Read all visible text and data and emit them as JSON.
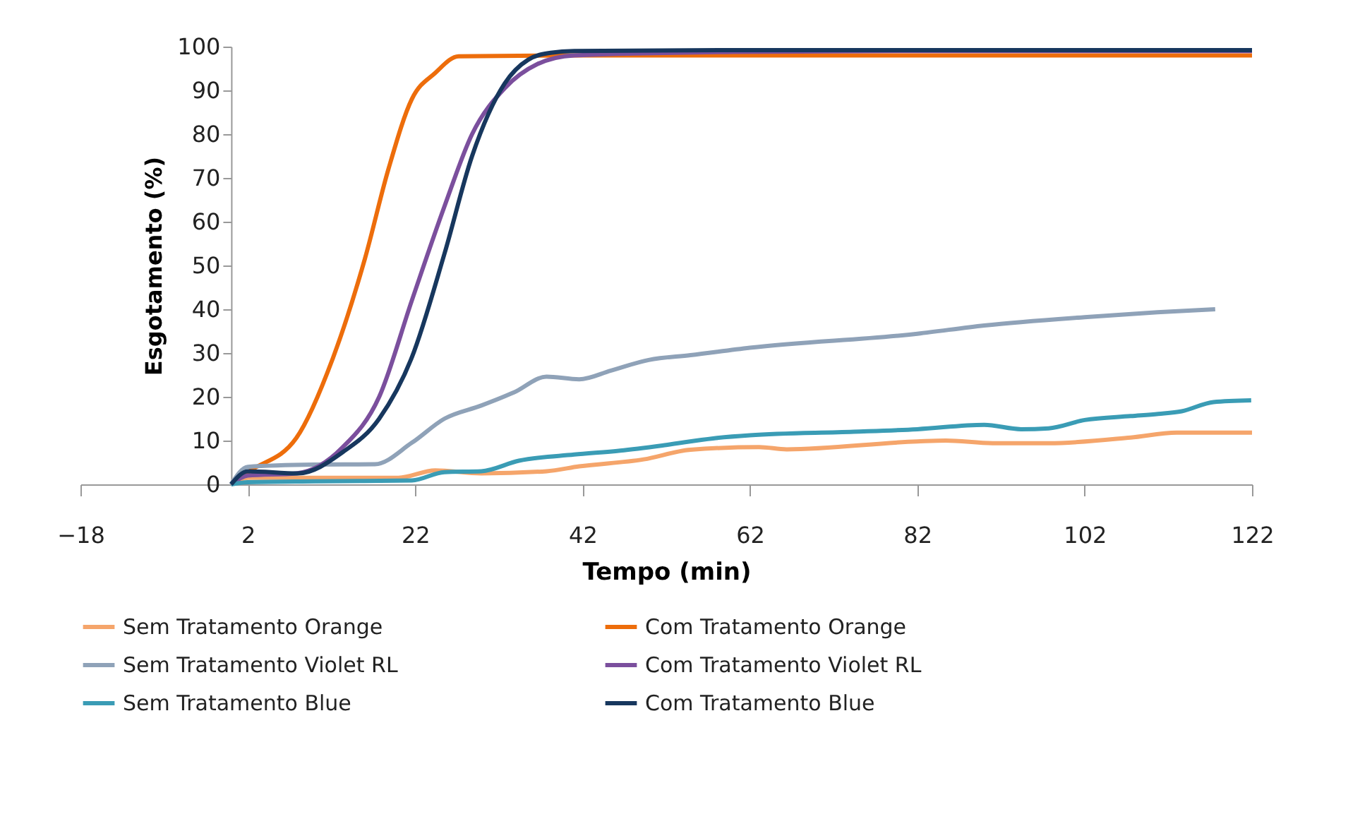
{
  "chart_data": {
    "type": "line",
    "xlabel": "Tempo (min)",
    "ylabel": "Esgotamento (%)",
    "xlim": [
      -18,
      122
    ],
    "xticks": [
      -18,
      2,
      22,
      42,
      62,
      82,
      102,
      122
    ],
    "ylim": [
      0,
      100
    ],
    "yticks": [
      0,
      10,
      20,
      30,
      40,
      50,
      60,
      70,
      80,
      90,
      100
    ],
    "grid": false,
    "legend": "bottom",
    "marker": "none",
    "line_style": "solid",
    "series": [
      {
        "name": "Sem Tratamento Orange",
        "color": "#f5a56b",
        "x": [
          0,
          2,
          10,
          20,
          24.4,
          29.9,
          37.7,
          41.6,
          49.3,
          54.9,
          63.1,
          66.4,
          82,
          85.4,
          91,
          97.7,
          107.5,
          113,
          122
        ],
        "values": [
          0,
          1.5,
          1.5,
          1.5,
          3.2,
          2.5,
          3,
          4.1,
          5.7,
          7.9,
          8.5,
          8,
          9.8,
          10,
          9.4,
          9.4,
          10.7,
          11.8,
          11.8
        ]
      },
      {
        "name": "Com Tratamento Orange",
        "color": "#ed6d0b",
        "x": [
          0,
          2.2,
          7.8,
          12.2,
          16,
          18.8,
          21.6,
          24.4,
          27.2,
          40,
          60,
          80,
          100,
          122
        ],
        "values": [
          0,
          3,
          10.6,
          29,
          51.6,
          72,
          88,
          94,
          97.8,
          98,
          98,
          98,
          98,
          98
        ]
      },
      {
        "name": "Sem Tratamento Violet RL",
        "color": "#8fa2b8",
        "x": [
          0,
          2,
          10,
          17.2,
          21.6,
          25.5,
          29.9,
          33.8,
          37.7,
          41.6,
          45.4,
          49.9,
          54.9,
          62,
          82,
          90,
          102,
          110.7,
          117.6
        ],
        "values": [
          0,
          4,
          4.5,
          4.6,
          9.5,
          15,
          18,
          21,
          24.6,
          24,
          26,
          28.4,
          29.5,
          31.2,
          34.4,
          36.3,
          38.2,
          39.3,
          40
        ]
      },
      {
        "name": "Com Tratamento Violet RL",
        "color": "#7b4f9d",
        "x": [
          0,
          2,
          7.8,
          13.3,
          17.7,
          21.6,
          25.5,
          28.8,
          32.7,
          36.6,
          41,
          60,
          80,
          100,
          122
        ],
        "values": [
          0,
          2,
          2.5,
          8.4,
          20,
          42,
          63.5,
          80,
          90.5,
          96,
          98,
          98.8,
          99,
          99,
          99
        ]
      },
      {
        "name": "Sem Tratamento Blue",
        "color": "#3a9cb5",
        "x": [
          0,
          2,
          10,
          21.6,
          25.5,
          29.9,
          34.4,
          41,
          46.5,
          52,
          57.6,
          62,
          74.4,
          82,
          90,
          94.4,
          97.7,
          102,
          107.5,
          110.8,
          113.6,
          117.4,
          121.9
        ],
        "values": [
          0,
          0.5,
          0.7,
          0.9,
          2.8,
          3,
          5.4,
          6.8,
          7.7,
          9,
          10.5,
          11.2,
          12,
          12.6,
          13.6,
          12.6,
          12.8,
          14.7,
          15.6,
          16.1,
          16.7,
          18.8,
          19.2
        ]
      },
      {
        "name": "Com Tratamento Blue",
        "color": "#17375e",
        "x": [
          0,
          2,
          8,
          13.3,
          17.7,
          21.6,
          25.5,
          28.8,
          32.7,
          35.5,
          38.2,
          41,
          60,
          80,
          100,
          122
        ],
        "values": [
          0,
          3,
          2.5,
          7.3,
          15,
          29,
          52.7,
          75,
          91.6,
          97,
          98.6,
          99,
          99.2,
          99.2,
          99.2,
          99.2
        ]
      }
    ]
  }
}
